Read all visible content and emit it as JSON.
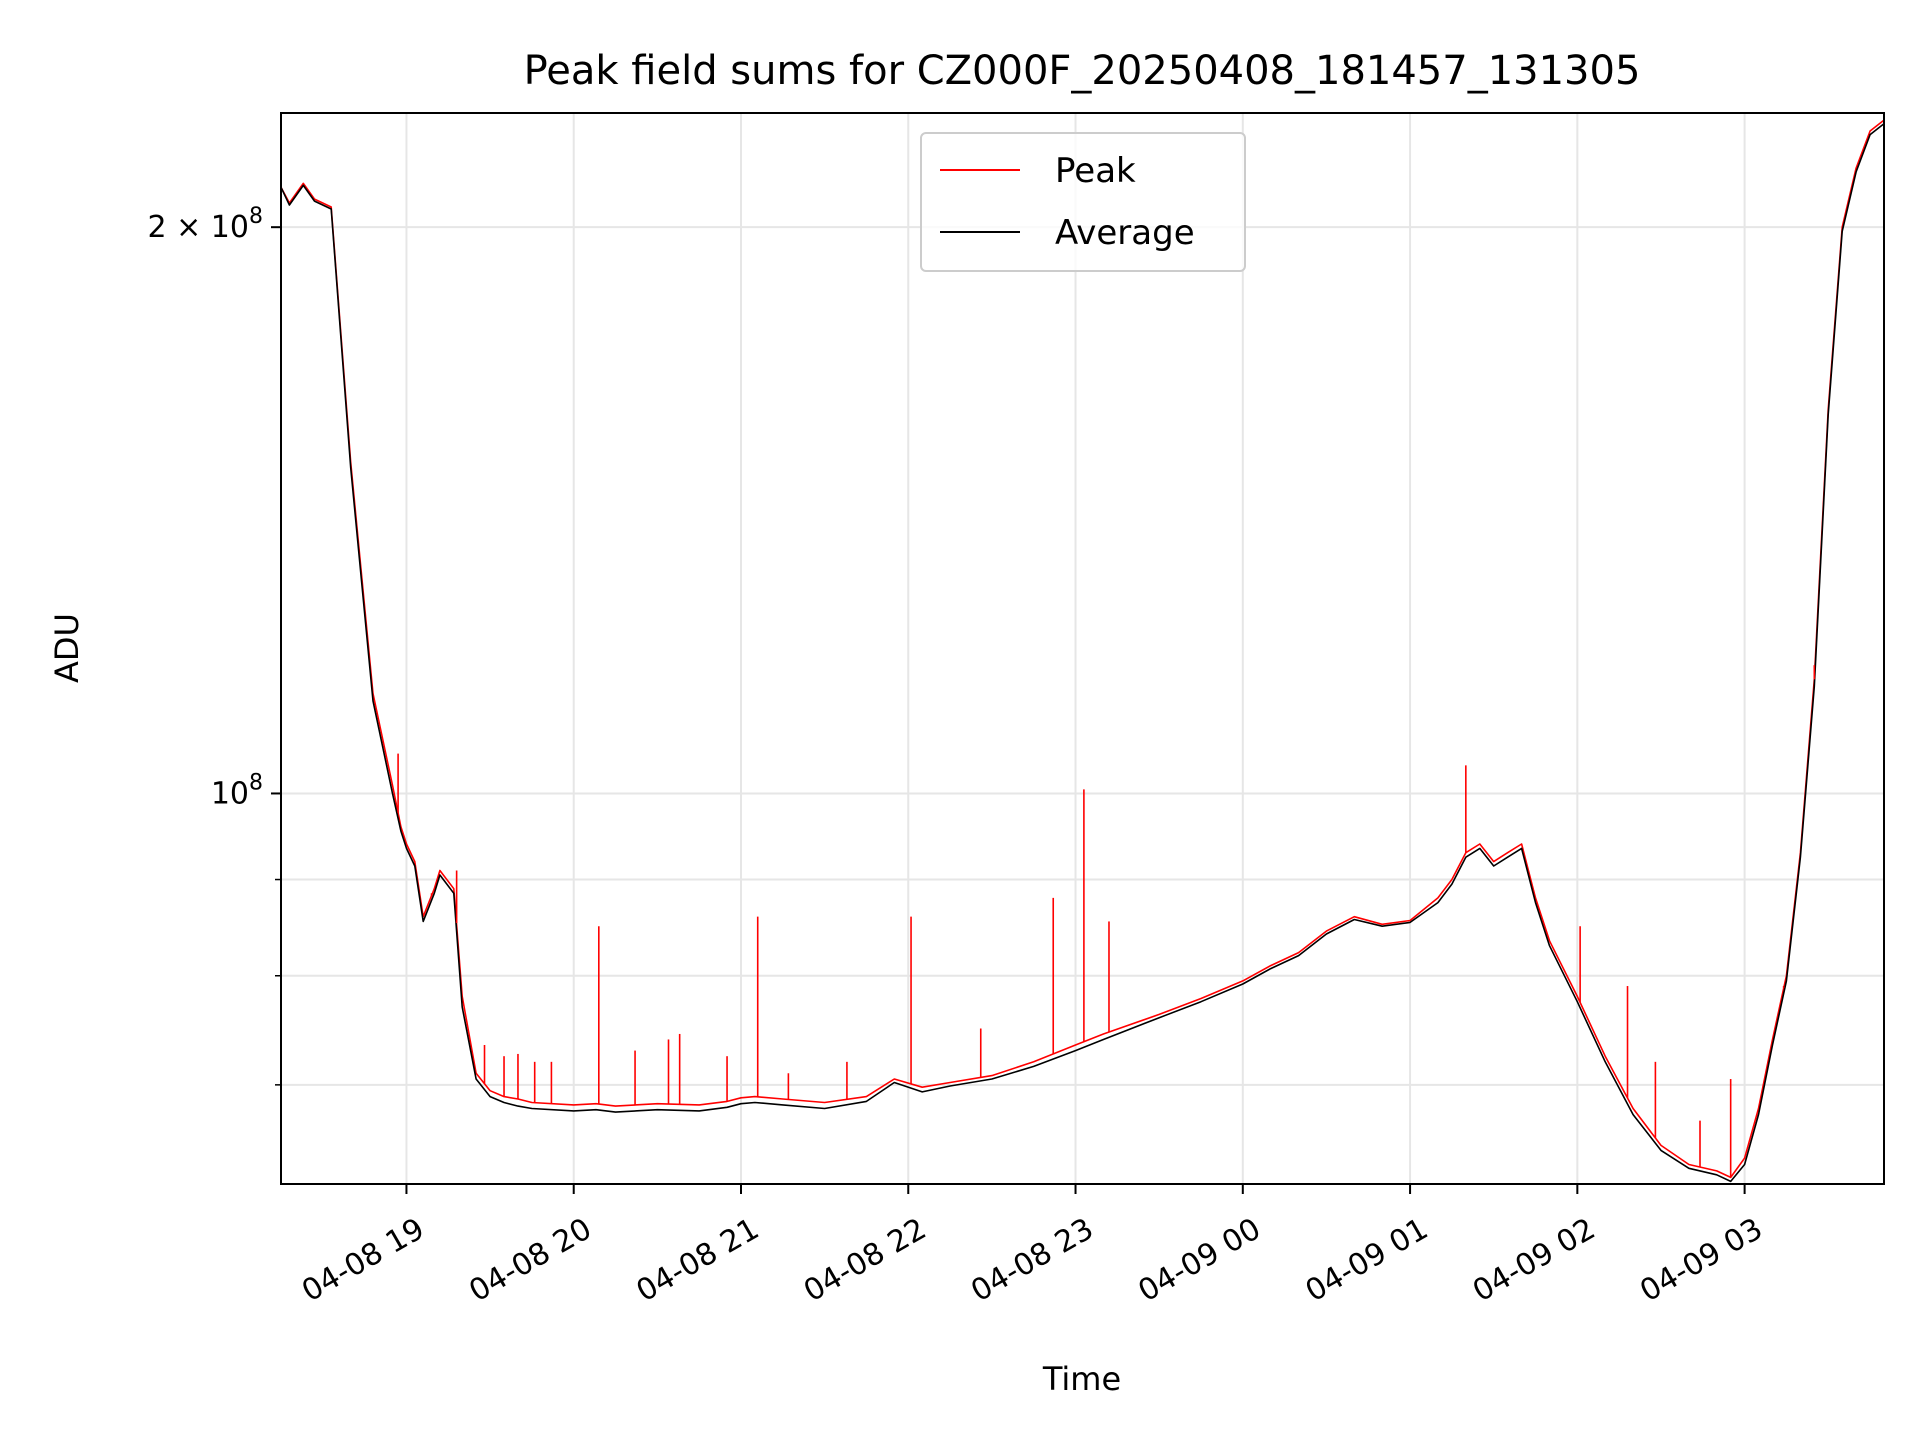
{
  "chart_data": {
    "type": "line",
    "title": "Peak field sums for CZ000F_20250408_181457_131305",
    "xlabel": "Time",
    "ylabel": "ADU",
    "y_scale": "log",
    "grid": true,
    "legend_position": "top-center",
    "xlim": [
      "2025-04-08 18:15",
      "2025-04-09 03:50"
    ],
    "ylim": [
      62000000,
      230000000
    ],
    "x_ticks": [
      "04-08 19",
      "04-08 20",
      "04-08 21",
      "04-08 22",
      "04-08 23",
      "04-09 00",
      "04-09 01",
      "04-09 02",
      "04-09 03"
    ],
    "x_tick_times": [
      "2025-04-08 19:00",
      "2025-04-08 20:00",
      "2025-04-08 21:00",
      "2025-04-08 22:00",
      "2025-04-08 23:00",
      "2025-04-09 00:00",
      "2025-04-09 01:00",
      "2025-04-09 02:00",
      "2025-04-09 03:00"
    ],
    "y_tick_labels": [
      {
        "value": 100000000,
        "mantissa": "",
        "exponent": "8"
      },
      {
        "value": 200000000,
        "mantissa": "2",
        "exponent": "8"
      }
    ],
    "y_minor_ticks": [
      70000000,
      80000000,
      90000000
    ],
    "series": [
      {
        "name": "Peak",
        "color": "#ff0000",
        "x": [
          "2025-04-08 18:15",
          "2025-04-08 18:18",
          "2025-04-08 18:23",
          "2025-04-08 18:27",
          "2025-04-08 18:33",
          "2025-04-08 18:40",
          "2025-04-08 18:48",
          "2025-04-08 18:55",
          "2025-04-08 18:58",
          "2025-04-08 19:00",
          "2025-04-08 19:03",
          "2025-04-08 19:06",
          "2025-04-08 19:10",
          "2025-04-08 19:12",
          "2025-04-08 19:17",
          "2025-04-08 19:20",
          "2025-04-08 19:25",
          "2025-04-08 19:30",
          "2025-04-08 19:35",
          "2025-04-08 19:40",
          "2025-04-08 19:45",
          "2025-04-08 20:00",
          "2025-04-08 20:08",
          "2025-04-08 20:15",
          "2025-04-08 20:30",
          "2025-04-08 20:45",
          "2025-04-08 20:55",
          "2025-04-08 21:00",
          "2025-04-08 21:05",
          "2025-04-08 21:15",
          "2025-04-08 21:30",
          "2025-04-08 21:45",
          "2025-04-08 21:55",
          "2025-04-08 22:05",
          "2025-04-08 22:15",
          "2025-04-08 22:30",
          "2025-04-08 22:45",
          "2025-04-08 23:00",
          "2025-04-08 23:10",
          "2025-04-08 23:30",
          "2025-04-08 23:45",
          "2025-04-09 00:00",
          "2025-04-09 00:10",
          "2025-04-09 00:20",
          "2025-04-09 00:30",
          "2025-04-09 00:40",
          "2025-04-09 00:50",
          "2025-04-09 01:00",
          "2025-04-09 01:10",
          "2025-04-09 01:15",
          "2025-04-09 01:20",
          "2025-04-09 01:25",
          "2025-04-09 01:30",
          "2025-04-09 01:35",
          "2025-04-09 01:40",
          "2025-04-09 01:45",
          "2025-04-09 01:50",
          "2025-04-09 02:00",
          "2025-04-09 02:10",
          "2025-04-09 02:20",
          "2025-04-09 02:30",
          "2025-04-09 02:40",
          "2025-04-09 02:50",
          "2025-04-09 02:55",
          "2025-04-09 03:00",
          "2025-04-09 03:05",
          "2025-04-09 03:10",
          "2025-04-09 03:15",
          "2025-04-09 03:20",
          "2025-04-09 03:25",
          "2025-04-09 03:30",
          "2025-04-09 03:35",
          "2025-04-09 03:40",
          "2025-04-09 03:45",
          "2025-04-09 03:50"
        ],
        "y": [
          210000000,
          206000000,
          211000000,
          207000000,
          205000000,
          150000000,
          113000000,
          101000000,
          96000000,
          94000000,
          92000000,
          86000000,
          89000000,
          91000000,
          89000000,
          78000000,
          71000000,
          69500000,
          69000000,
          68800000,
          68500000,
          68300000,
          68400000,
          68200000,
          68400000,
          68300000,
          68600000,
          68900000,
          69000000,
          68800000,
          68500000,
          69000000,
          70500000,
          69800000,
          70200000,
          70800000,
          72000000,
          73500000,
          74500000,
          76300000,
          77800000,
          79500000,
          81000000,
          82300000,
          84500000,
          86000000,
          85200000,
          85600000,
          88000000,
          90000000,
          93000000,
          94000000,
          92000000,
          93000000,
          94000000,
          88000000,
          83500000,
          78000000,
          72500000,
          68000000,
          65000000,
          63500000,
          63000000,
          62500000,
          64000000,
          68000000,
          74000000,
          80000000,
          93000000,
          115000000,
          160000000,
          200000000,
          215000000,
          225000000,
          228000000
        ]
      },
      {
        "name": "Average",
        "color": "#000000",
        "x": [
          "2025-04-08 18:15",
          "2025-04-08 18:18",
          "2025-04-08 18:23",
          "2025-04-08 18:27",
          "2025-04-08 18:33",
          "2025-04-08 18:40",
          "2025-04-08 18:48",
          "2025-04-08 18:55",
          "2025-04-08 18:58",
          "2025-04-08 19:00",
          "2025-04-08 19:03",
          "2025-04-08 19:06",
          "2025-04-08 19:10",
          "2025-04-08 19:12",
          "2025-04-08 19:17",
          "2025-04-08 19:20",
          "2025-04-08 19:25",
          "2025-04-08 19:30",
          "2025-04-08 19:35",
          "2025-04-08 19:40",
          "2025-04-08 19:45",
          "2025-04-08 20:00",
          "2025-04-08 20:08",
          "2025-04-08 20:15",
          "2025-04-08 20:30",
          "2025-04-08 20:45",
          "2025-04-08 20:55",
          "2025-04-08 21:00",
          "2025-04-08 21:05",
          "2025-04-08 21:15",
          "2025-04-08 21:30",
          "2025-04-08 21:45",
          "2025-04-08 21:55",
          "2025-04-08 22:05",
          "2025-04-08 22:15",
          "2025-04-08 22:30",
          "2025-04-08 22:45",
          "2025-04-08 23:00",
          "2025-04-08 23:10",
          "2025-04-08 23:30",
          "2025-04-08 23:45",
          "2025-04-09 00:00",
          "2025-04-09 00:10",
          "2025-04-09 00:20",
          "2025-04-09 00:30",
          "2025-04-09 00:40",
          "2025-04-09 00:50",
          "2025-04-09 01:00",
          "2025-04-09 01:10",
          "2025-04-09 01:15",
          "2025-04-09 01:20",
          "2025-04-09 01:25",
          "2025-04-09 01:30",
          "2025-04-09 01:35",
          "2025-04-09 01:40",
          "2025-04-09 01:45",
          "2025-04-09 01:50",
          "2025-04-09 02:00",
          "2025-04-09 02:10",
          "2025-04-09 02:20",
          "2025-04-09 02:30",
          "2025-04-09 02:40",
          "2025-04-09 02:50",
          "2025-04-09 02:55",
          "2025-04-09 03:00",
          "2025-04-09 03:05",
          "2025-04-09 03:10",
          "2025-04-09 03:15",
          "2025-04-09 03:20",
          "2025-04-09 03:25",
          "2025-04-09 03:30",
          "2025-04-09 03:35",
          "2025-04-09 03:40",
          "2025-04-09 03:45",
          "2025-04-09 03:50"
        ],
        "y": [
          210000000,
          205500000,
          210500000,
          206500000,
          204500000,
          149000000,
          112000000,
          100000000,
          95500000,
          93500000,
          91500000,
          85500000,
          88500000,
          90500000,
          88500000,
          77000000,
          70500000,
          69000000,
          68500000,
          68200000,
          68000000,
          67800000,
          67900000,
          67700000,
          67900000,
          67800000,
          68100000,
          68400000,
          68500000,
          68300000,
          68000000,
          68600000,
          70200000,
          69400000,
          69900000,
          70500000,
          71600000,
          73000000,
          74000000,
          76000000,
          77500000,
          79200000,
          80700000,
          82000000,
          84200000,
          85700000,
          85000000,
          85400000,
          87500000,
          89500000,
          92500000,
          93500000,
          91500000,
          92500000,
          93500000,
          87500000,
          83000000,
          77500000,
          72000000,
          67500000,
          64600000,
          63200000,
          62700000,
          62200000,
          63500000,
          67500000,
          73500000,
          79500000,
          92500000,
          114000000,
          159000000,
          199000000,
          214000000,
          224000000,
          227000000
        ]
      }
    ],
    "peak_spikes": [
      {
        "x": "2025-04-08 18:57",
        "y": 105000000
      },
      {
        "x": "2025-04-08 19:09",
        "y": 88500000
      },
      {
        "x": "2025-04-08 19:18",
        "y": 91000000
      },
      {
        "x": "2025-04-08 19:28",
        "y": 73500000
      },
      {
        "x": "2025-04-08 19:35",
        "y": 72500000
      },
      {
        "x": "2025-04-08 19:40",
        "y": 72700000
      },
      {
        "x": "2025-04-08 19:46",
        "y": 72000000
      },
      {
        "x": "2025-04-08 19:52",
        "y": 72000000
      },
      {
        "x": "2025-04-08 20:09",
        "y": 85000000
      },
      {
        "x": "2025-04-08 20:22",
        "y": 73000000
      },
      {
        "x": "2025-04-08 20:34",
        "y": 74000000
      },
      {
        "x": "2025-04-08 20:38",
        "y": 74500000
      },
      {
        "x": "2025-04-08 20:55",
        "y": 72500000
      },
      {
        "x": "2025-04-08 21:06",
        "y": 86000000
      },
      {
        "x": "2025-04-08 21:17",
        "y": 71000000
      },
      {
        "x": "2025-04-08 21:38",
        "y": 72000000
      },
      {
        "x": "2025-04-08 22:01",
        "y": 86000000
      },
      {
        "x": "2025-04-08 22:26",
        "y": 75000000
      },
      {
        "x": "2025-04-08 22:52",
        "y": 88000000
      },
      {
        "x": "2025-04-08 23:03",
        "y": 100500000
      },
      {
        "x": "2025-04-08 23:12",
        "y": 85500000
      },
      {
        "x": "2025-04-09 01:20",
        "y": 103500000
      },
      {
        "x": "2025-04-09 02:01",
        "y": 85000000
      },
      {
        "x": "2025-04-09 02:18",
        "y": 79000000
      },
      {
        "x": "2025-04-09 02:28",
        "y": 72000000
      },
      {
        "x": "2025-04-09 02:44",
        "y": 67000000
      },
      {
        "x": "2025-04-09 02:55",
        "y": 70500000
      },
      {
        "x": "2025-04-09 03:14",
        "y": 79000000
      },
      {
        "x": "2025-04-09 03:25",
        "y": 117000000
      }
    ]
  }
}
